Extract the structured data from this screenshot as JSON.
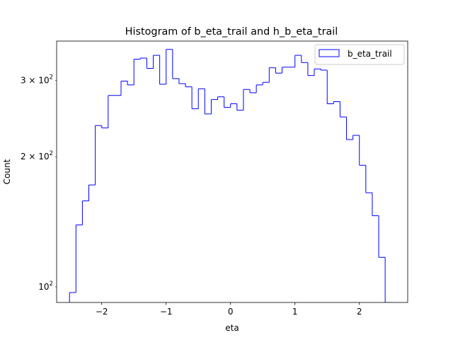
{
  "chart_data": {
    "type": "histogram",
    "title": "Histogram of b_eta_trail and h_b_eta_trail",
    "xlabel": "eta",
    "ylabel": "Count",
    "xlim": [
      -2.7,
      2.75
    ],
    "ylim": [
      92,
      370
    ],
    "yscale": "log",
    "grid": false,
    "legend_position": "top-right",
    "x_ticks": [
      {
        "value": -2,
        "label": "−2"
      },
      {
        "value": -1,
        "label": "−1"
      },
      {
        "value": 0,
        "label": "0"
      },
      {
        "value": 1,
        "label": "1"
      },
      {
        "value": 2,
        "label": "2"
      }
    ],
    "y_ticks": [
      {
        "value": 100,
        "base": "10",
        "exp": "2"
      },
      {
        "value": 200,
        "base": "2 × 10",
        "exp": "2"
      },
      {
        "value": 300,
        "base": "3 × 10",
        "exp": "2"
      }
    ],
    "bin_edges": [
      -2.5,
      -2.4,
      -2.3,
      -2.2,
      -2.1,
      -2.0,
      -1.9,
      -1.8,
      -1.7,
      -1.6,
      -1.5,
      -1.4,
      -1.3,
      -1.2,
      -1.1,
      -1.0,
      -0.9,
      -0.8,
      -0.7,
      -0.6,
      -0.5,
      -0.4,
      -0.3,
      -0.2,
      -0.1,
      0.0,
      0.1,
      0.2,
      0.3,
      0.4,
      0.5,
      0.6,
      0.7,
      0.8,
      0.9,
      1.0,
      1.1,
      1.2,
      1.3,
      1.4,
      1.5,
      1.6,
      1.7,
      1.8,
      1.9,
      2.0,
      2.1,
      2.2,
      2.3,
      2.4,
      2.5
    ],
    "series": [
      {
        "name": "b_eta_trail",
        "color": "#0000ff",
        "counts": [
          97,
          139,
          158,
          172,
          236,
          233,
          277,
          277,
          299,
          293,
          336,
          338,
          320,
          343,
          294,
          354,
          303,
          295,
          290,
          258,
          287,
          251,
          271,
          275,
          260,
          265,
          256,
          286,
          281,
          293,
          297,
          321,
          312,
          322,
          322,
          343,
          330,
          308,
          319,
          317,
          265,
          268,
          247,
          219,
          224,
          191,
          165,
          146,
          117,
          92
        ]
      }
    ]
  }
}
